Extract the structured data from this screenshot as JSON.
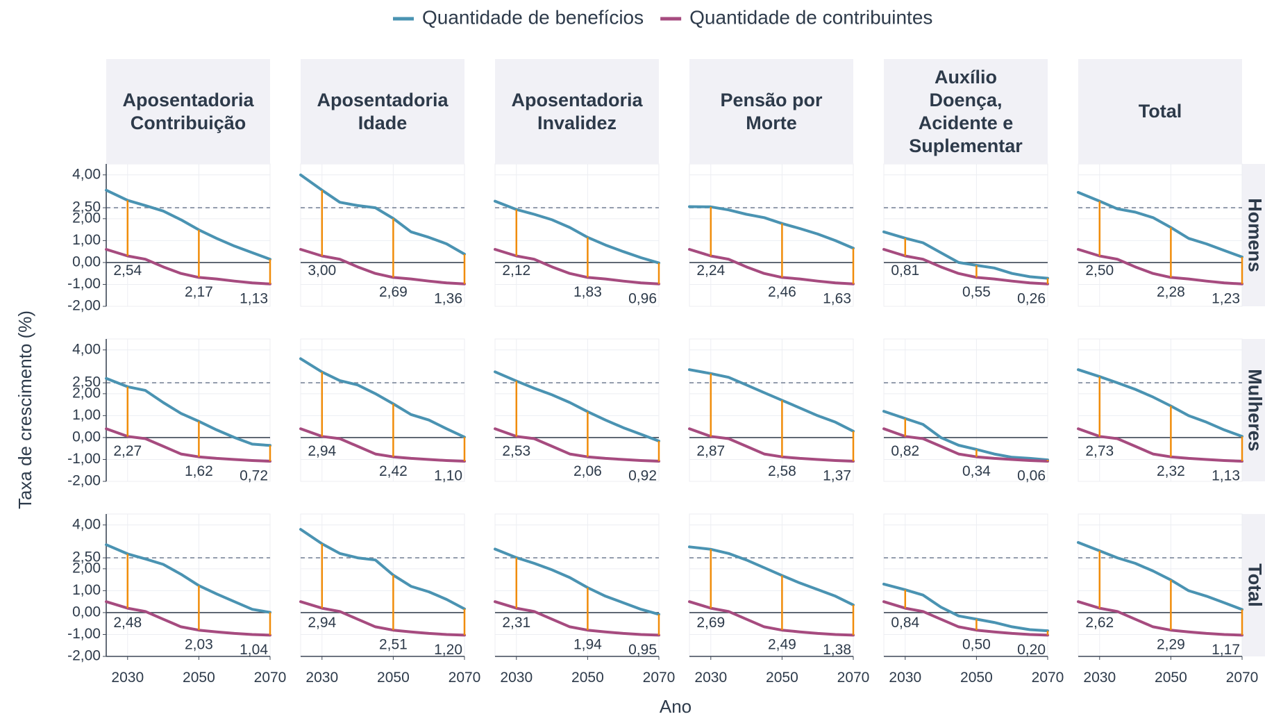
{
  "chart_data": {
    "type": "line",
    "legend": [
      {
        "name": "Quantidade de benefícios",
        "color": "#4a93b2"
      },
      {
        "name": "Quantidade de contribuintes",
        "color": "#a64b7f"
      }
    ],
    "gap_color": "#f08c0a",
    "x_label": "Ano",
    "y_label": "Taxa de crescimento (%)",
    "columns": [
      "Aposentadoria Contribuição",
      "Aposentadoria Idade",
      "Aposentadoria Invalidez",
      "Pensão por Morte",
      "Auxílio Doença, Acidente e Suplementar",
      "Total"
    ],
    "rows": [
      "Homens",
      "Mulheres",
      "Total"
    ],
    "x": [
      2024,
      2030,
      2035,
      2040,
      2045,
      2050,
      2055,
      2060,
      2065,
      2070
    ],
    "xlim": [
      2024,
      2070
    ],
    "xticks": [
      2030,
      2050,
      2070
    ],
    "ylim": [
      -2,
      4.5
    ],
    "yticks": [
      {
        "value": -2,
        "label": "-2,00"
      },
      {
        "value": -1,
        "label": "-1,00"
      },
      {
        "value": 0,
        "label": "0,00"
      },
      {
        "value": 1,
        "label": "1,00"
      },
      {
        "value": 2,
        "label": "2,00"
      },
      {
        "value": 2.5,
        "label": "2,50"
      },
      {
        "value": 4,
        "label": "4,00"
      }
    ],
    "reference_line": 2.5,
    "grid": true,
    "gap_years": [
      2030,
      2050,
      2070
    ],
    "panels": [
      {
        "row": 0,
        "col": 0,
        "series": [
          {
            "values": [
              3.3,
              2.84,
              2.6,
              2.35,
              1.95,
              1.49,
              1.1,
              0.75,
              0.45,
              0.15
            ]
          },
          {
            "values": [
              0.6,
              0.3,
              0.15,
              -0.2,
              -0.5,
              -0.68,
              -0.75,
              -0.85,
              -0.93,
              -0.98
            ]
          }
        ],
        "gaps": {
          "values": [
            2.54,
            2.17,
            1.13
          ],
          "value_labels": [
            "2,54",
            "2,17",
            "1,13"
          ]
        }
      },
      {
        "row": 0,
        "col": 1,
        "series": [
          {
            "values": [
              4.0,
              3.3,
              2.75,
              2.6,
              2.5,
              2.01,
              1.4,
              1.15,
              0.85,
              0.38
            ]
          },
          {
            "values": [
              0.6,
              0.3,
              0.15,
              -0.2,
              -0.5,
              -0.68,
              -0.75,
              -0.85,
              -0.93,
              -0.98
            ]
          }
        ],
        "gaps": {
          "values": [
            3.0,
            2.69,
            1.36
          ],
          "value_labels": [
            "3,00",
            "2,69",
            "1,36"
          ]
        }
      },
      {
        "row": 0,
        "col": 2,
        "series": [
          {
            "values": [
              2.8,
              2.42,
              2.2,
              1.95,
              1.6,
              1.15,
              0.8,
              0.5,
              0.22,
              -0.02
            ]
          },
          {
            "values": [
              0.6,
              0.3,
              0.15,
              -0.2,
              -0.5,
              -0.68,
              -0.75,
              -0.85,
              -0.93,
              -0.98
            ]
          }
        ],
        "gaps": {
          "values": [
            2.12,
            1.83,
            0.96
          ],
          "value_labels": [
            "2,12",
            "1,83",
            "0,96"
          ]
        }
      },
      {
        "row": 0,
        "col": 3,
        "series": [
          {
            "values": [
              2.55,
              2.54,
              2.4,
              2.2,
              2.05,
              1.78,
              1.55,
              1.3,
              1.0,
              0.65
            ]
          },
          {
            "values": [
              0.6,
              0.3,
              0.15,
              -0.2,
              -0.5,
              -0.68,
              -0.75,
              -0.85,
              -0.93,
              -0.98
            ]
          }
        ],
        "gaps": {
          "values": [
            2.24,
            2.46,
            1.63
          ],
          "value_labels": [
            "2,24",
            "2,46",
            "1,63"
          ]
        }
      },
      {
        "row": 0,
        "col": 4,
        "series": [
          {
            "values": [
              1.4,
              1.11,
              0.9,
              0.45,
              0.0,
              -0.13,
              -0.25,
              -0.5,
              -0.65,
              -0.72
            ]
          },
          {
            "values": [
              0.6,
              0.3,
              0.15,
              -0.2,
              -0.5,
              -0.68,
              -0.75,
              -0.85,
              -0.93,
              -0.98
            ]
          }
        ],
        "gaps": {
          "values": [
            0.81,
            0.55,
            0.26
          ],
          "value_labels": [
            "0,81",
            "0,55",
            "0,26"
          ]
        }
      },
      {
        "row": 0,
        "col": 5,
        "series": [
          {
            "values": [
              3.2,
              2.8,
              2.45,
              2.3,
              2.05,
              1.6,
              1.1,
              0.85,
              0.55,
              0.25
            ]
          },
          {
            "values": [
              0.6,
              0.3,
              0.15,
              -0.2,
              -0.5,
              -0.68,
              -0.75,
              -0.85,
              -0.93,
              -0.98
            ]
          }
        ],
        "gaps": {
          "values": [
            2.5,
            2.28,
            1.23
          ],
          "value_labels": [
            "2,50",
            "2,28",
            "1,23"
          ]
        }
      },
      {
        "row": 1,
        "col": 0,
        "series": [
          {
            "values": [
              2.7,
              2.32,
              2.15,
              1.6,
              1.1,
              0.74,
              0.35,
              0.0,
              -0.3,
              -0.36
            ]
          },
          {
            "values": [
              0.4,
              0.05,
              -0.05,
              -0.4,
              -0.75,
              -0.88,
              -0.95,
              -1.0,
              -1.05,
              -1.08
            ]
          }
        ],
        "gaps": {
          "values": [
            2.27,
            1.62,
            0.72
          ],
          "value_labels": [
            "2,27",
            "1,62",
            "0,72"
          ]
        }
      },
      {
        "row": 1,
        "col": 1,
        "series": [
          {
            "values": [
              3.6,
              2.99,
              2.6,
              2.4,
              2.0,
              1.54,
              1.05,
              0.8,
              0.4,
              0.02
            ]
          },
          {
            "values": [
              0.4,
              0.05,
              -0.05,
              -0.4,
              -0.75,
              -0.88,
              -0.95,
              -1.0,
              -1.05,
              -1.08
            ]
          }
        ],
        "gaps": {
          "values": [
            2.94,
            2.42,
            1.1
          ],
          "value_labels": [
            "2,94",
            "2,42",
            "1,10"
          ]
        }
      },
      {
        "row": 1,
        "col": 2,
        "series": [
          {
            "values": [
              3.0,
              2.58,
              2.25,
              1.95,
              1.6,
              1.18,
              0.8,
              0.45,
              0.15,
              -0.16
            ]
          },
          {
            "values": [
              0.4,
              0.05,
              -0.05,
              -0.4,
              -0.75,
              -0.88,
              -0.95,
              -1.0,
              -1.05,
              -1.08
            ]
          }
        ],
        "gaps": {
          "values": [
            2.53,
            2.06,
            0.92
          ],
          "value_labels": [
            "2,53",
            "2,06",
            "0,92"
          ]
        }
      },
      {
        "row": 1,
        "col": 3,
        "series": [
          {
            "values": [
              3.1,
              2.92,
              2.75,
              2.4,
              2.05,
              1.7,
              1.35,
              1.0,
              0.7,
              0.29
            ]
          },
          {
            "values": [
              0.4,
              0.05,
              -0.05,
              -0.4,
              -0.75,
              -0.88,
              -0.95,
              -1.0,
              -1.05,
              -1.08
            ]
          }
        ],
        "gaps": {
          "values": [
            2.87,
            2.58,
            1.37
          ],
          "value_labels": [
            "2,87",
            "2,58",
            "1,37"
          ]
        }
      },
      {
        "row": 1,
        "col": 4,
        "series": [
          {
            "values": [
              1.2,
              0.87,
              0.6,
              0.0,
              -0.35,
              -0.54,
              -0.75,
              -0.9,
              -0.95,
              -1.02
            ]
          },
          {
            "values": [
              0.4,
              0.05,
              -0.05,
              -0.4,
              -0.75,
              -0.88,
              -0.95,
              -1.0,
              -1.05,
              -1.08
            ]
          }
        ],
        "gaps": {
          "values": [
            0.82,
            0.34,
            0.06
          ],
          "value_labels": [
            "0,82",
            "0,34",
            "0,06"
          ]
        }
      },
      {
        "row": 1,
        "col": 5,
        "series": [
          {
            "values": [
              3.1,
              2.78,
              2.5,
              2.2,
              1.85,
              1.44,
              1.0,
              0.7,
              0.35,
              0.05
            ]
          },
          {
            "values": [
              0.4,
              0.05,
              -0.05,
              -0.4,
              -0.75,
              -0.88,
              -0.95,
              -1.0,
              -1.05,
              -1.08
            ]
          }
        ],
        "gaps": {
          "values": [
            2.73,
            2.32,
            1.13
          ],
          "value_labels": [
            "2,73",
            "2,32",
            "1,13"
          ]
        }
      },
      {
        "row": 2,
        "col": 0,
        "series": [
          {
            "values": [
              3.1,
              2.68,
              2.45,
              2.2,
              1.75,
              1.23,
              0.85,
              0.5,
              0.15,
              0.01
            ]
          },
          {
            "values": [
              0.5,
              0.2,
              0.05,
              -0.3,
              -0.65,
              -0.8,
              -0.88,
              -0.95,
              -1.0,
              -1.03
            ]
          }
        ],
        "gaps": {
          "values": [
            2.48,
            2.03,
            1.04
          ],
          "value_labels": [
            "2,48",
            "2,03",
            "1,04"
          ]
        }
      },
      {
        "row": 2,
        "col": 1,
        "series": [
          {
            "values": [
              3.8,
              3.14,
              2.7,
              2.5,
              2.4,
              1.71,
              1.2,
              0.95,
              0.6,
              0.17
            ]
          },
          {
            "values": [
              0.5,
              0.2,
              0.05,
              -0.3,
              -0.65,
              -0.8,
              -0.88,
              -0.95,
              -1.0,
              -1.03
            ]
          }
        ],
        "gaps": {
          "values": [
            2.94,
            2.51,
            1.2
          ],
          "value_labels": [
            "2,94",
            "2,51",
            "1,20"
          ]
        }
      },
      {
        "row": 2,
        "col": 2,
        "series": [
          {
            "values": [
              2.9,
              2.51,
              2.25,
              1.95,
              1.6,
              1.14,
              0.75,
              0.45,
              0.15,
              -0.08
            ]
          },
          {
            "values": [
              0.5,
              0.2,
              0.05,
              -0.3,
              -0.65,
              -0.8,
              -0.88,
              -0.95,
              -1.0,
              -1.03
            ]
          }
        ],
        "gaps": {
          "values": [
            2.31,
            1.94,
            0.95
          ],
          "value_labels": [
            "2,31",
            "1,94",
            "0,95"
          ]
        }
      },
      {
        "row": 2,
        "col": 3,
        "series": [
          {
            "values": [
              3.0,
              2.89,
              2.7,
              2.4,
              2.05,
              1.69,
              1.35,
              1.05,
              0.75,
              0.35
            ]
          },
          {
            "values": [
              0.5,
              0.2,
              0.05,
              -0.3,
              -0.65,
              -0.8,
              -0.88,
              -0.95,
              -1.0,
              -1.03
            ]
          }
        ],
        "gaps": {
          "values": [
            2.69,
            2.49,
            1.38
          ],
          "value_labels": [
            "2,69",
            "2,49",
            "1,38"
          ]
        }
      },
      {
        "row": 2,
        "col": 4,
        "series": [
          {
            "values": [
              1.3,
              1.04,
              0.8,
              0.25,
              -0.15,
              -0.3,
              -0.45,
              -0.65,
              -0.78,
              -0.83
            ]
          },
          {
            "values": [
              0.5,
              0.2,
              0.05,
              -0.3,
              -0.65,
              -0.8,
              -0.88,
              -0.95,
              -1.0,
              -1.03
            ]
          }
        ],
        "gaps": {
          "values": [
            0.84,
            0.5,
            0.2
          ],
          "value_labels": [
            "0,84",
            "0,50",
            "0,20"
          ]
        }
      },
      {
        "row": 2,
        "col": 5,
        "series": [
          {
            "values": [
              3.2,
              2.82,
              2.5,
              2.25,
              1.9,
              1.49,
              1.0,
              0.75,
              0.45,
              0.14
            ]
          },
          {
            "values": [
              0.5,
              0.2,
              0.05,
              -0.3,
              -0.65,
              -0.8,
              -0.88,
              -0.95,
              -1.0,
              -1.03
            ]
          }
        ],
        "gaps": {
          "values": [
            2.62,
            2.29,
            1.17
          ],
          "value_labels": [
            "2,62",
            "2,29",
            "1,17"
          ]
        }
      }
    ]
  }
}
